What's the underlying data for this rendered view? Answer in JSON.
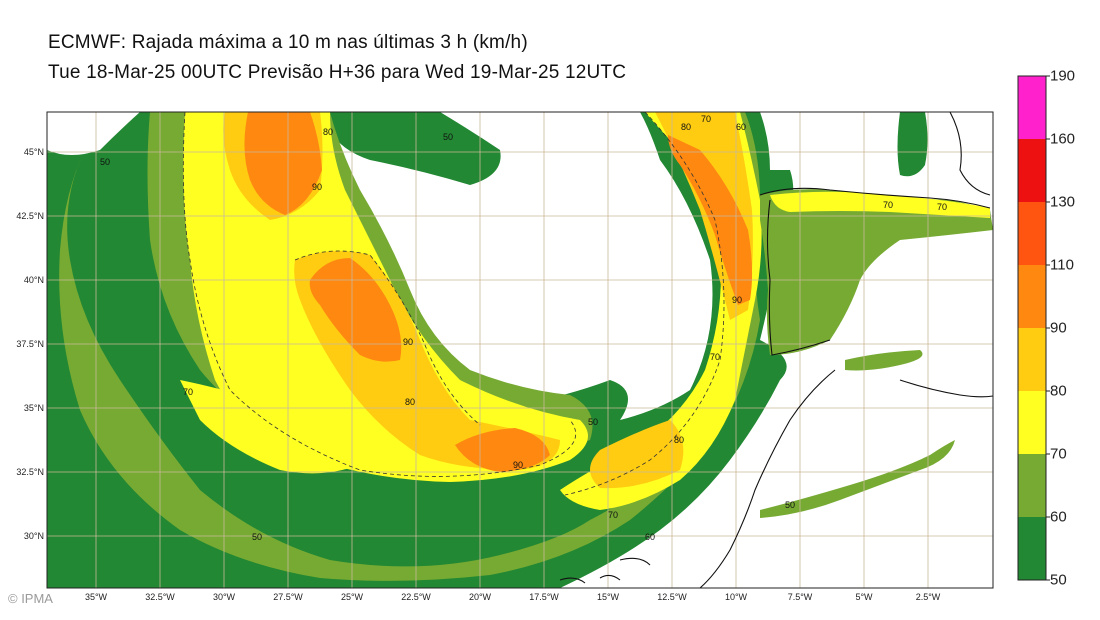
{
  "header": {
    "title": "ECMWF: Rajada máxima a 10 m nas últimas 3 h (km/h)",
    "subtitle": "Tue 18-Mar-25 00UTC Previsão H+36 para Wed 19-Mar-25 12UTC"
  },
  "axes": {
    "lat_ticks": [
      "45°N",
      "42.5°N",
      "40°N",
      "37.5°N",
      "35°N",
      "32.5°N",
      "30°N"
    ],
    "lon_ticks": [
      "35°W",
      "32.5°W",
      "30°W",
      "27.5°W",
      "25°W",
      "22.5°W",
      "20°W",
      "17.5°W",
      "15°W",
      "12.5°W",
      "10°W",
      "7.5°W",
      "5°W",
      "2.5°W"
    ]
  },
  "colorbar": {
    "labels": [
      "190",
      "160",
      "130",
      "110",
      "90",
      "80",
      "70",
      "60",
      "50"
    ],
    "colors": [
      "#ff22cc",
      "#ee1111",
      "#ff5511",
      "#ff8811",
      "#ffcc11",
      "#ffff22",
      "#77aa33",
      "#228833"
    ]
  },
  "contour_labels": [
    "50",
    "60",
    "70",
    "80",
    "90"
  ],
  "credit": "© IPMA"
}
